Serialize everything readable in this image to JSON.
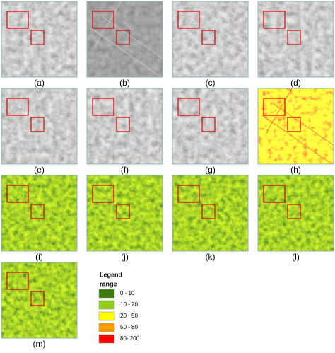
{
  "panels": [
    "(a)",
    "(b)",
    "(c)",
    "(d)",
    "(e)",
    "(f)",
    "(g)",
    "(h)",
    "(i)",
    "(j)",
    "(k)",
    "(l)",
    "(m)"
  ],
  "legend": {
    "title": "Legend",
    "subtitle": "range",
    "items": [
      {
        "label": "0 - 10",
        "color": "#3a7d0a"
      },
      {
        "label": "10 - 20",
        "color": "#8fcf1a"
      },
      {
        "label": "20 - 50",
        "color": "#ffff00"
      },
      {
        "label": "50 - 80",
        "color": "#ff9900"
      },
      {
        "label": "80- 200",
        "color": "#ff0000"
      }
    ]
  }
}
